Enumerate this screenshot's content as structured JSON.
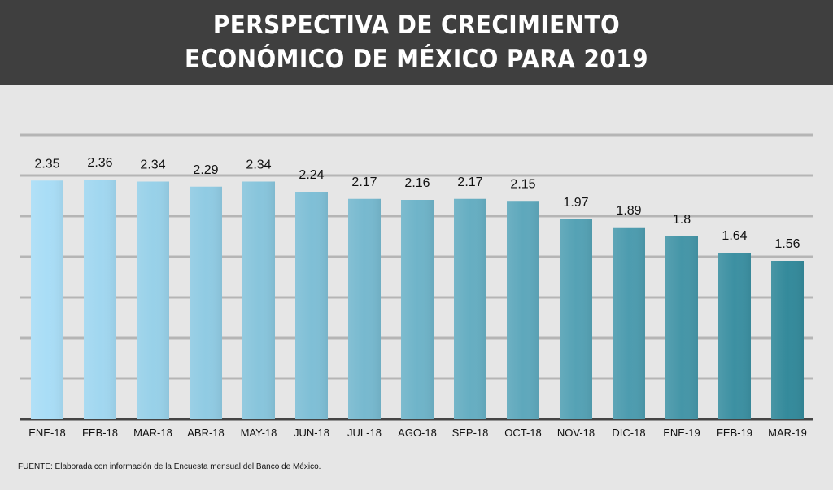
{
  "header": {
    "title": "PERSPECTIVA DE CRECIMIENTO ECONÓMICO DE MÉXICO PARA 2019"
  },
  "source": "FUENTE: Elaborada con información de la Encuesta mensual del Banco de México.",
  "colors": {
    "header_bg": "#3f3f3f",
    "background": "#e6e6e6",
    "gridline": "#b5b5b5",
    "axis": "#444444",
    "bar_start": "#a9ddf6",
    "bar_end": "#348a9b"
  },
  "chart_data": {
    "type": "bar",
    "title": "PERSPECTIVA DE CRECIMIENTO ECONÓMICO DE MÉXICO PARA 2019",
    "categories": [
      "ENE-18",
      "FEB-18",
      "MAR-18",
      "ABR-18",
      "MAY-18",
      "JUN-18",
      "JUL-18",
      "AGO-18",
      "SEP-18",
      "OCT-18",
      "NOV-18",
      "DIC-18",
      "ENE-19",
      "FEB-19",
      "MAR-19"
    ],
    "values": [
      2.35,
      2.36,
      2.34,
      2.29,
      2.34,
      2.24,
      2.17,
      2.16,
      2.17,
      2.15,
      1.97,
      1.89,
      1.8,
      1.64,
      1.56
    ],
    "value_labels": [
      "2.35",
      "2.36",
      "2.34",
      "2.29",
      "2.34",
      "2.24",
      "2.17",
      "2.16",
      "2.17",
      "2.15",
      "1.97",
      "1.89",
      "1.8",
      "1.64",
      "1.56"
    ],
    "xlabel": "",
    "ylabel": "",
    "ylim": [
      0,
      2.8
    ],
    "grid": true,
    "data_labels": true
  }
}
